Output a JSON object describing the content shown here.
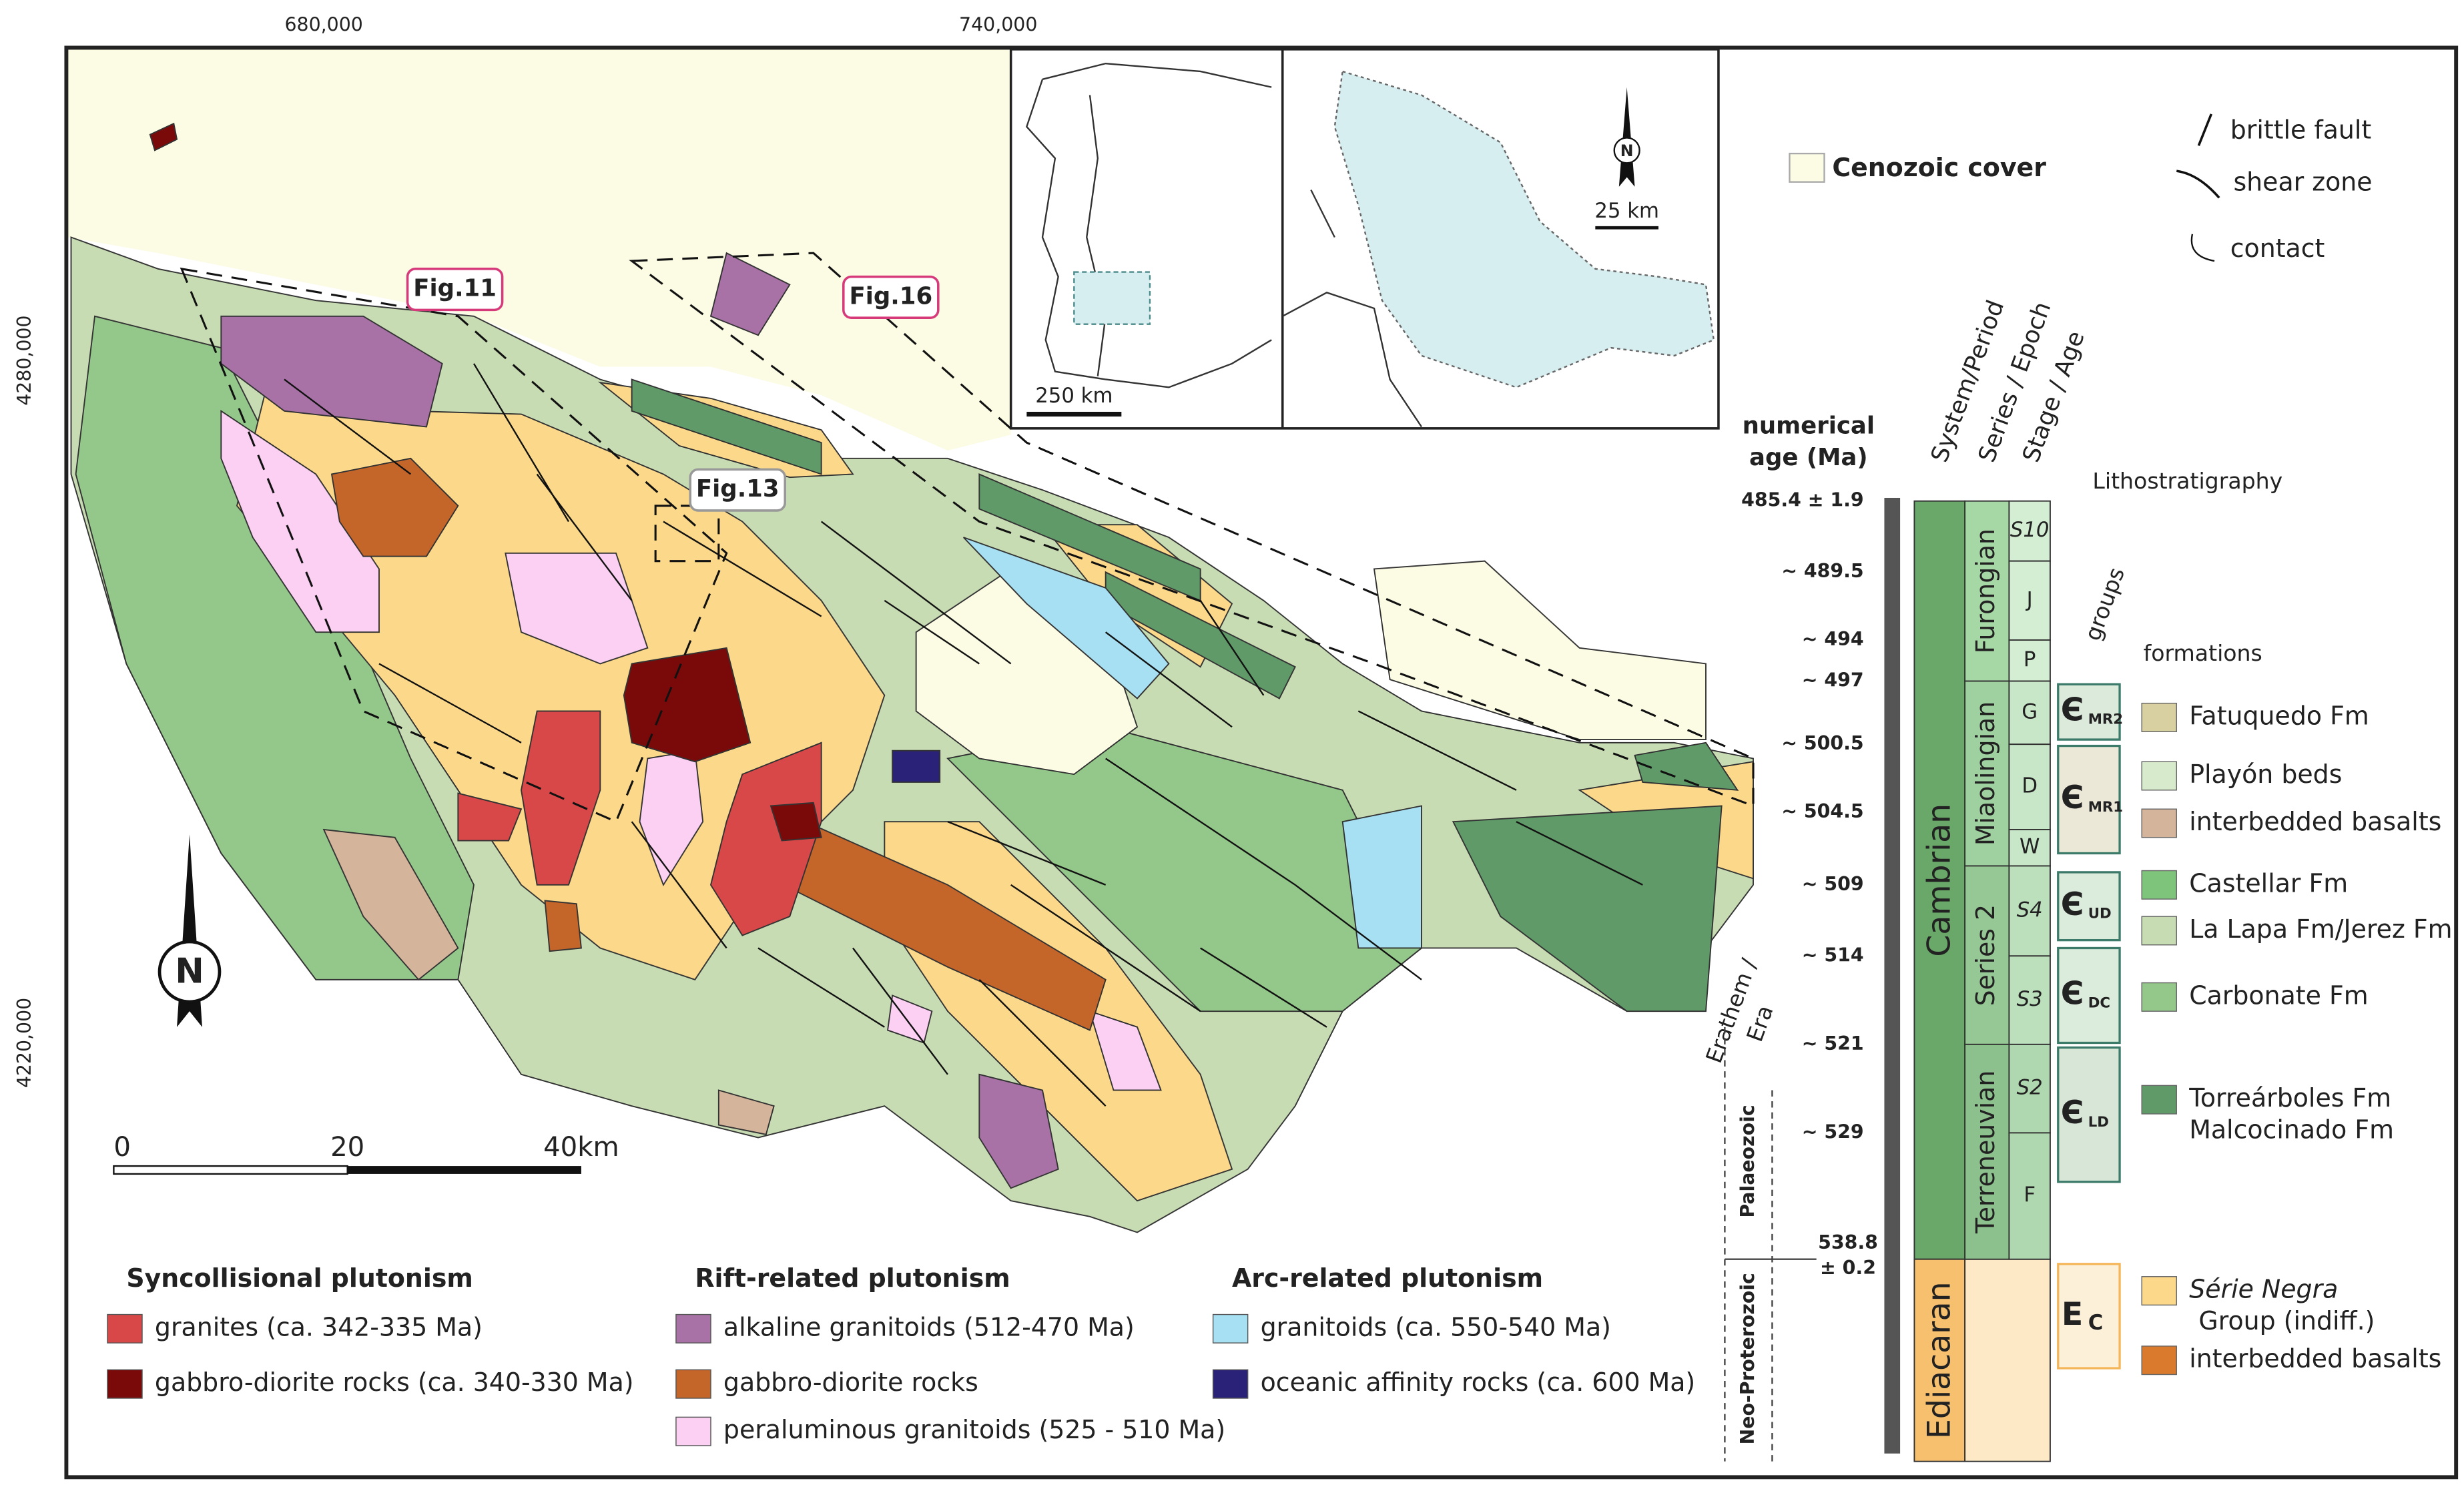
{
  "map": {
    "x_coordinates": [
      "680,000",
      "740,000"
    ],
    "y_coordinates": [
      "4280,000",
      "4220,000"
    ],
    "figures": [
      "Fig.11",
      "Fig.16",
      "Fig.13"
    ],
    "scale_bar": [
      "0",
      "20",
      "40km"
    ],
    "north": "N"
  },
  "inset": {
    "scale_left": "250 km",
    "scale_right": "25 km",
    "north": "N"
  },
  "legend": {
    "cenozoic": {
      "label": "Cenozoic cover",
      "color": "#fcfbe4"
    },
    "structures": [
      "brittle fault",
      "shear zone",
      "contact"
    ]
  },
  "plutonism": [
    {
      "title": "Syncollisional plutonism",
      "items": [
        {
          "label": "granites (ca. 342-335 Ma)",
          "color": "#d94848"
        },
        {
          "label": "gabbro-diorite rocks (ca. 340-330 Ma)",
          "color": "#7a0a0a"
        }
      ]
    },
    {
      "title": "Rift-related plutonism",
      "items": [
        {
          "label": "alkaline granitoids (512-470 Ma)",
          "color": "#a872a6"
        },
        {
          "label": "gabbro-diorite rocks",
          "color": "#c4652a"
        },
        {
          "label": "peraluminous granitoids (525 - 510 Ma)",
          "color": "#fbd0f2"
        }
      ]
    },
    {
      "title": "Arc-related plutonism",
      "items": [
        {
          "label": "granitoids (ca. 550-540 Ma)",
          "color": "#a6e0f2"
        },
        {
          "label": "oceanic affinity rocks (ca. 600 Ma)",
          "color": "#2a2278"
        }
      ]
    }
  ],
  "stratigraphy": {
    "age_header": [
      "numerical",
      "age (Ma)"
    ],
    "ages": [
      "485.4 ± 1.9",
      "~ 489.5",
      "~ 494",
      "~ 497",
      "~ 500.5",
      "~ 504.5",
      "~ 509",
      "~ 514",
      "~ 521",
      "~ 529"
    ],
    "base_age": [
      "538.8",
      "± 0.2"
    ],
    "headers": [
      "System/Period",
      "Series / Epoch",
      "Stage / Age"
    ],
    "lithostratigraphy": "Lithostratigraphy",
    "groups_header": "groups",
    "formations_header": "formations",
    "era_header": [
      "Erathem /",
      "Era"
    ],
    "eras": [
      "Palaeozoic",
      "Neo-Proterozoic"
    ],
    "systems": [
      "Cambrian",
      "Ediacaran"
    ],
    "series": [
      "Furongian",
      "Miaolingian",
      "Series 2",
      "Terreneuvian"
    ],
    "stages": [
      "S10",
      "J",
      "P",
      "G",
      "D",
      "W",
      "S4",
      "S3",
      "S2",
      "F"
    ],
    "groups": [
      {
        "symbol": "Є",
        "sub": "MR2"
      },
      {
        "symbol": "Є",
        "sub": "MR1"
      },
      {
        "symbol": "Є",
        "sub": "UD"
      },
      {
        "symbol": "Є",
        "sub": "DC"
      },
      {
        "symbol": "Є",
        "sub": "LD"
      },
      {
        "symbol": "E",
        "sub": "C"
      }
    ],
    "formations": [
      {
        "label": [
          "Fatuquedo Fm"
        ],
        "color": "#d8d0a0"
      },
      {
        "label": [
          "Playón beds"
        ],
        "color": "#d7ebcc"
      },
      {
        "label": [
          "interbedded basalts"
        ],
        "color": "#d4b49a"
      },
      {
        "label": [
          "Castellar Fm"
        ],
        "color": "#7ec47a"
      },
      {
        "label": [
          "La Lapa Fm/Jerez Fm"
        ],
        "color": "#c8dcb4"
      },
      {
        "label": [
          "Carbonate Fm"
        ],
        "color": "#94c88a"
      },
      {
        "label": [
          "Torreárboles Fm",
          "Malcocinado Fm"
        ],
        "color": "#5f9a68"
      },
      {
        "label": [
          "Série Negra",
          "Group (indiff.)"
        ],
        "color": "#fcd98a"
      },
      {
        "label": [
          "interbedded basalts"
        ],
        "color": "#d97a2c"
      }
    ]
  }
}
